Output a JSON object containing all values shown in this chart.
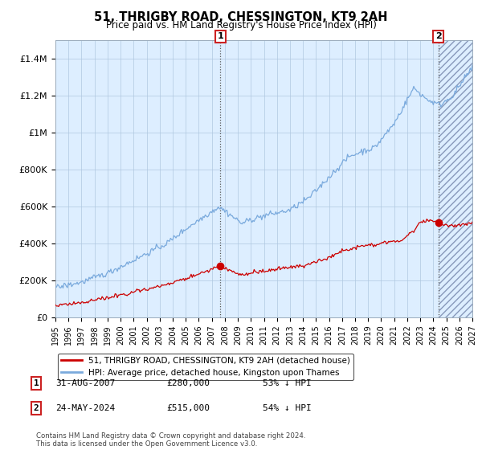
{
  "title": "51, THRIGBY ROAD, CHESSINGTON, KT9 2AH",
  "subtitle": "Price paid vs. HM Land Registry's House Price Index (HPI)",
  "legend_line1": "51, THRIGBY ROAD, CHESSINGTON, KT9 2AH (detached house)",
  "legend_line2": "HPI: Average price, detached house, Kingston upon Thames",
  "annotation1_label": "1",
  "annotation1_date": "31-AUG-2007",
  "annotation1_price": "£280,000",
  "annotation1_hpi": "53% ↓ HPI",
  "annotation2_label": "2",
  "annotation2_date": "24-MAY-2024",
  "annotation2_price": "£515,000",
  "annotation2_hpi": "54% ↓ HPI",
  "footer": "Contains HM Land Registry data © Crown copyright and database right 2024.\nThis data is licensed under the Open Government Licence v3.0.",
  "red_color": "#cc0000",
  "blue_color": "#7aaadd",
  "bg_color_light": "#ddeeff",
  "grid_color": "#b0c8e0",
  "ylim": [
    0,
    1500000
  ],
  "yticks": [
    0,
    200000,
    400000,
    600000,
    800000,
    1000000,
    1200000,
    1400000
  ],
  "ytick_labels": [
    "£0",
    "£200K",
    "£400K",
    "£600K",
    "£800K",
    "£1M",
    "£1.2M",
    "£1.4M"
  ],
  "marker1_year": 2007.67,
  "marker1_red_val": 280000,
  "marker2_year": 2024.39,
  "marker2_red_val": 515000,
  "xmin": 1995,
  "xmax": 2027
}
